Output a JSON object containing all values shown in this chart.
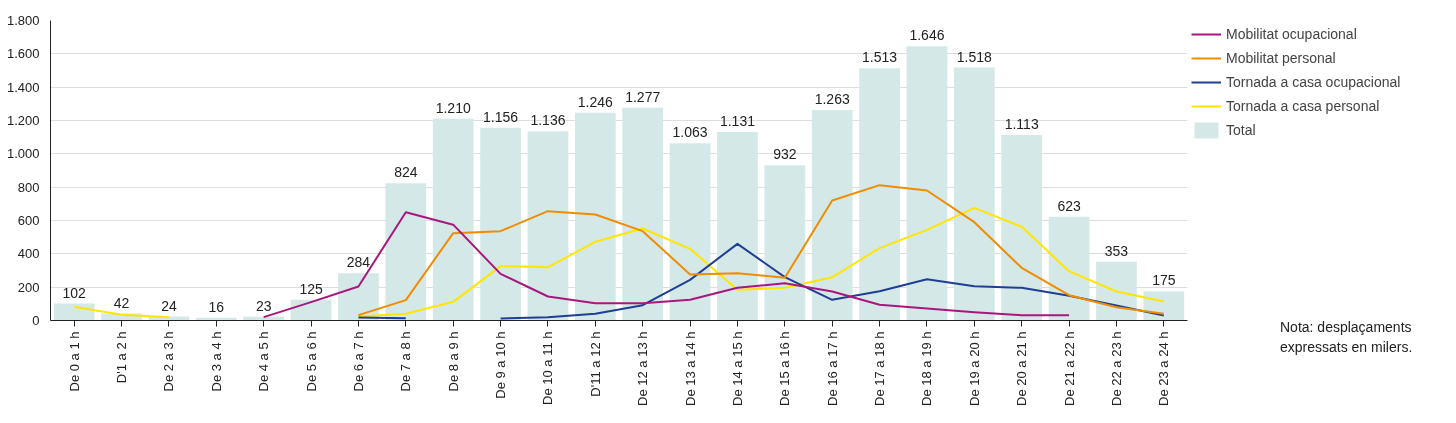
{
  "chart_data": {
    "type": "bar",
    "categories": [
      "De 0 a 1 h",
      "D'1 a 2 h",
      "De 2 a 3 h",
      "De 3 a 4 h",
      "De 4 a 5 h",
      "De 5 a 6 h",
      "De 6 a 7 h",
      "De 7 a 8 h",
      "De 8 a 9 h",
      "De 9 a 10 h",
      "De 10 a 11 h",
      "D'11 a 12 h",
      "De 12 a 13 h",
      "De 13 a 14 h",
      "De 14 a 15 h",
      "De 15 a 16 h",
      "De 16 a 17 h",
      "De 17 a 18 h",
      "De 18 a 19 h",
      "De 19 a 20 h",
      "De 20 a 21 h",
      "De 21 a 22 h",
      "De 22 a 23 h",
      "De 23 a 24 h"
    ],
    "series": [
      {
        "name": "Total",
        "color": "#d5e8e8",
        "values": [
          102,
          42,
          24,
          16,
          23,
          125,
          284,
          824,
          1210,
          1156,
          1136,
          1246,
          1277,
          1063,
          1131,
          932,
          1263,
          1513,
          1646,
          1518,
          1113,
          623,
          353,
          175
        ],
        "value_labels": [
          "102",
          "42",
          "24",
          "16",
          "23",
          "125",
          "284",
          "824",
          "1.210",
          "1.156",
          "1.136",
          "1.246",
          "1.277",
          "1.063",
          "1.131",
          "932",
          "1.263",
          "1.513",
          "1.646",
          "1.518",
          "1.113",
          "623",
          "353",
          "175"
        ]
      },
      {
        "name": "Mobilitat ocupacional",
        "type": "line",
        "color": "#a8177e",
        "values": [
          null,
          null,
          null,
          null,
          20,
          110,
          204,
          650,
          575,
          280,
          144,
          104,
          104,
          124,
          196,
          224,
          174,
          94,
          72,
          50,
          32,
          32,
          null,
          null
        ]
      },
      {
        "name": "Mobilitat personal",
        "type": "line",
        "color": "#f08c00",
        "values": [
          null,
          null,
          null,
          null,
          null,
          null,
          32,
          122,
          524,
          536,
          656,
          636,
          536,
          276,
          284,
          256,
          720,
          812,
          780,
          590,
          316,
          152,
          80,
          40
        ]
      },
      {
        "name": "Tornada a casa ocupacional",
        "type": "line",
        "color": "#1f3f93",
        "values": [
          null,
          null,
          null,
          null,
          null,
          null,
          18,
          14,
          null,
          12,
          20,
          40,
          92,
          244,
          460,
          260,
          124,
          176,
          248,
          206,
          196,
          148,
          90,
          30
        ]
      },
      {
        "name": "Tornada a casa personal",
        "type": "line",
        "color": "#ffe600",
        "values": [
          82,
          34,
          20,
          null,
          null,
          null,
          24,
          40,
          112,
          326,
          320,
          472,
          552,
          430,
          184,
          196,
          260,
          434,
          544,
          676,
          562,
          296,
          174,
          114
        ]
      }
    ],
    "ylim": [
      0,
      1800
    ],
    "yticks": [
      {
        "value": 0,
        "label": "0"
      },
      {
        "value": 200,
        "label": "200"
      },
      {
        "value": 400,
        "label": "400"
      },
      {
        "value": 600,
        "label": "600"
      },
      {
        "value": 800,
        "label": "800"
      },
      {
        "value": 1000,
        "label": "1.000"
      },
      {
        "value": 1200,
        "label": "1.200"
      },
      {
        "value": 1400,
        "label": "1.400"
      },
      {
        "value": 1600,
        "label": "1.600"
      },
      {
        "value": 1800,
        "label": "1.800"
      }
    ],
    "grid": "y",
    "legend": "right",
    "annotations": [
      "Nota: desplaçaments expressats en milers."
    ]
  }
}
